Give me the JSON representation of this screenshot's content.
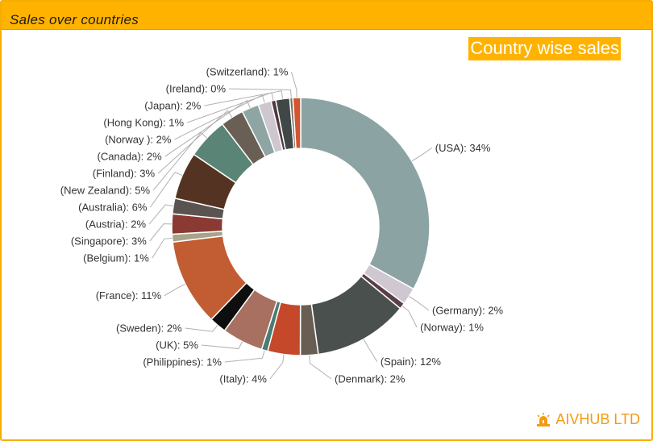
{
  "panel": {
    "title": "Sales over countries"
  },
  "brand": {
    "name": "AIVHUB LTD",
    "icon": "alarm-light-icon",
    "color": "#f39c12"
  },
  "chart_data": {
    "type": "pie",
    "variant": "donut",
    "title": "Country wise sales",
    "label_format": "(name): pct%",
    "slices": [
      {
        "label": "(USA)",
        "pct": 34,
        "weight": 34,
        "color": "#8ca3a3"
      },
      {
        "label": "(Germany)",
        "pct": 2,
        "weight": 2.2,
        "color": "#cfc8d0"
      },
      {
        "label": "(Norway)",
        "pct": 1,
        "weight": 0.8,
        "color": "#5a3f48"
      },
      {
        "label": "(Spain)",
        "pct": 12,
        "weight": 12.2,
        "color": "#4a504e"
      },
      {
        "label": "(Denmark)",
        "pct": 2,
        "weight": 2.3,
        "color": "#6a5e52"
      },
      {
        "label": "(Italy)",
        "pct": 4,
        "weight": 4.2,
        "color": "#c5482a"
      },
      {
        "label": "(Philippines)",
        "pct": 1,
        "weight": 0.8,
        "color": "#4b7c73"
      },
      {
        "label": "(UK)",
        "pct": 5,
        "weight": 5.3,
        "color": "#a87060"
      },
      {
        "label": "(Sweden)",
        "pct": 2,
        "weight": 2.2,
        "color": "#0e0e0e"
      },
      {
        "label": "(France)",
        "pct": 11,
        "weight": 11.2,
        "color": "#c25d33"
      },
      {
        "label": "(Belgium)",
        "pct": 1,
        "weight": 1.0,
        "color": "#a8a38a"
      },
      {
        "label": "(Singapore)",
        "pct": 3,
        "weight": 2.6,
        "color": "#8b3a33"
      },
      {
        "label": "(Austria)",
        "pct": 2,
        "weight": 2.0,
        "color": "#5a5350"
      },
      {
        "label": "(Australia)",
        "pct": 6,
        "weight": 6.1,
        "color": "#553322"
      },
      {
        "label": "(New Zealand)",
        "pct": 5,
        "weight": 5.3,
        "color": "#5a8475"
      },
      {
        "label": "(Finland)",
        "pct": 3,
        "weight": 3.0,
        "color": "#6a5f54"
      },
      {
        "label": "(Canada)",
        "pct": 2,
        "weight": 2.2,
        "color": "#8ea5a3"
      },
      {
        "label": "(Norway )",
        "pct": 2,
        "weight": 1.7,
        "color": "#cec7cf"
      },
      {
        "label": "(Hong Kong)",
        "pct": 1,
        "weight": 0.6,
        "color": "#52383f"
      },
      {
        "label": "(Japan)",
        "pct": 2,
        "weight": 1.8,
        "color": "#3f4846"
      },
      {
        "label": "(Ireland)",
        "pct": 0,
        "weight": 0.4,
        "color": "#7a6e62"
      },
      {
        "label": "(Switzerland)",
        "pct": 1,
        "weight": 1.0,
        "color": "#d2552f"
      }
    ]
  }
}
